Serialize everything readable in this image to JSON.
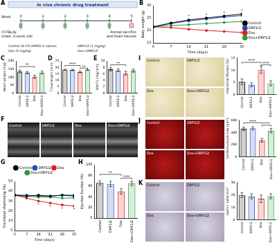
{
  "diagram": {
    "panel": "A",
    "title": "In vivo chronic drug treatment",
    "axis_label": "Week",
    "weeks": [
      0,
      1,
      2,
      3,
      4,
      5
    ],
    "subject": [
      "C57BL/6J",
      "(male, 6-week old)"
    ],
    "endpoint": [
      "Animal sacrifice",
      "and heart harvest"
    ],
    "treatments": [
      "Control (0.1% DMSO in saline)",
      "DRP1i2 (1 mg/kg)",
      "Dox (5 mg/kg)",
      "Dox+DRP1i2"
    ]
  },
  "images": [
    {
      "panel": "F",
      "labels": [
        "Control",
        "DRP1i2",
        "Dox",
        "Dox+DRP1i2"
      ]
    },
    {
      "panel": "I",
      "labels": [
        "Control",
        "DRP1i2",
        "Dox",
        "Dox+DRP1i2"
      ]
    },
    {
      "panel": "J",
      "labels": [
        "Control",
        "DRP1i2",
        "Dox",
        "Dox+DRP1i2"
      ]
    },
    {
      "panel": "K",
      "labels": [
        "Control",
        "DRP1i2",
        "Dox",
        "Dox+DRP1i2"
      ]
    }
  ],
  "chart_data": [
    {
      "panel": "B",
      "type": "line",
      "x_label": "Time (days)",
      "y_label": "Body weight (g)",
      "marker": "circle",
      "legend": "right",
      "grid": false,
      "x": [
        0,
        7,
        14,
        21,
        28,
        35
      ],
      "xlim": [
        0,
        35
      ],
      "xticks": [
        0,
        7,
        14,
        21,
        28,
        35
      ],
      "ylim": [
        15,
        30
      ],
      "yticks": [
        15,
        20,
        25,
        30
      ],
      "series": [
        {
          "name": "Control",
          "color": "#000000",
          "values": [
            21.5,
            23.0,
            24.2,
            25.0,
            25.8,
            26.6
          ]
        },
        {
          "name": "DRP1i2",
          "color": "#1f4eb4",
          "values": [
            21.3,
            22.8,
            23.8,
            24.6,
            25.4,
            26.0
          ]
        },
        {
          "name": "Dox",
          "color": "#e02020",
          "values": [
            21.4,
            21.2,
            20.5,
            20.0,
            19.6,
            19.2
          ]
        },
        {
          "name": "Dox+DRP1i2",
          "color": "#2a9a3a",
          "values": [
            21.4,
            22.0,
            22.3,
            22.8,
            23.2,
            23.6
          ]
        }
      ],
      "annotations": [
        {
          "text": "*",
          "x": 14,
          "y": 25.5
        },
        {
          "text": "*",
          "x": 21,
          "y": 26.3
        },
        {
          "text": "*",
          "x": 28,
          "y": 27.1
        },
        {
          "text": "*",
          "x": 35,
          "y": 27.9
        }
      ]
    },
    {
      "panel": "C",
      "type": "bar",
      "y_label": "Heart weight (mg)",
      "grid": false,
      "categories": [
        "Control",
        "DRP1i2",
        "Dox",
        "Dox+DRP1i2"
      ],
      "colors": [
        "#000000",
        "#1f4eb4",
        "#e02020",
        "#2a9a3a"
      ],
      "values": [
        135,
        128,
        102,
        128
      ],
      "errors": [
        8,
        7,
        10,
        9
      ],
      "ylim": [
        0,
        200
      ],
      "yticks": [
        0,
        50,
        100,
        150,
        200
      ],
      "annotations": [
        {
          "text": "**",
          "from": 0,
          "to": 2,
          "y": 165
        }
      ]
    },
    {
      "panel": "D",
      "type": "bar",
      "y_label": "Tibial length (mm)",
      "grid": false,
      "categories": [
        "Control",
        "DRP1i2",
        "Dox",
        "Dox+DRP1i2"
      ],
      "colors": [
        "#000000",
        "#1f4eb4",
        "#e02020",
        "#2a9a3a"
      ],
      "values": [
        18.2,
        18.0,
        16.4,
        18.1
      ],
      "errors": [
        0.4,
        0.5,
        0.6,
        0.4
      ],
      "ylim": [
        0,
        25
      ],
      "yticks": [
        0,
        5,
        10,
        15,
        20,
        25
      ],
      "annotations": [
        {
          "text": "****",
          "from": 0,
          "to": 2,
          "y": 21.5
        },
        {
          "text": "**",
          "from": 2,
          "to": 3,
          "y": 19.5
        }
      ]
    },
    {
      "panel": "E",
      "type": "bar",
      "y_label": "HW/TL (mg/mm)",
      "grid": false,
      "categories": [
        "Control",
        "DRP1i2",
        "Dox",
        "Dox+DRP1i2"
      ],
      "colors": [
        "#000000",
        "#1f4eb4",
        "#e02020",
        "#2a9a3a"
      ],
      "values": [
        7.4,
        7.1,
        6.2,
        7.0
      ],
      "errors": [
        0.5,
        0.4,
        0.6,
        0.5
      ],
      "ylim": [
        0,
        10
      ],
      "yticks": [
        0,
        2,
        4,
        6,
        8,
        10
      ],
      "annotations": [
        {
          "text": "**",
          "from": 0,
          "to": 2,
          "y": 8.8
        }
      ]
    },
    {
      "panel": "G",
      "type": "line",
      "x_label": "Time (days)",
      "y_label": "Fractional shortening (%)",
      "marker": "circle",
      "legend": "top",
      "grid": false,
      "x": [
        0,
        7,
        14,
        21,
        28,
        35
      ],
      "xlim": [
        0,
        35
      ],
      "xticks": [
        0,
        7,
        14,
        21,
        28,
        35
      ],
      "ylim": [
        0,
        50
      ],
      "yticks": [
        0,
        10,
        20,
        30,
        40,
        50
      ],
      "series": [
        {
          "name": "Control",
          "color": "#000000",
          "values": [
            36,
            35,
            36,
            35,
            36,
            35
          ]
        },
        {
          "name": "DRP1i2",
          "color": "#1f4eb4",
          "values": [
            36,
            36,
            35,
            35,
            36,
            36
          ]
        },
        {
          "name": "Dox",
          "color": "#e02020",
          "values": [
            36,
            33,
            30,
            28,
            26,
            25
          ]
        },
        {
          "name": "Dox+DRP1i2",
          "color": "#2a9a3a",
          "values": [
            36,
            35,
            34,
            34,
            33,
            33
          ]
        }
      ],
      "annotations": [
        {
          "text": "*",
          "x": 14,
          "y": 26
        },
        {
          "text": "*",
          "x": 21,
          "y": 24
        },
        {
          "text": "*",
          "x": 28,
          "y": 22
        },
        {
          "text": "*",
          "x": 35,
          "y": 21
        }
      ]
    },
    {
      "panel": "H",
      "type": "bar",
      "y_label": "Ejection fraction (%)",
      "grid": false,
      "categories": [
        "Control",
        "DRP1i2",
        "Dox",
        "Dox+DRP1i2"
      ],
      "colors": [
        "#000000",
        "#1f4eb4",
        "#e02020",
        "#2a9a3a"
      ],
      "values": [
        66,
        64,
        50,
        65
      ],
      "errors": [
        4,
        5,
        5,
        4
      ],
      "ylim": [
        0,
        100
      ],
      "yticks": [
        0,
        20,
        40,
        60,
        80,
        100
      ],
      "annotations": [
        {
          "text": "**",
          "from": 0,
          "to": 2,
          "y": 82
        },
        {
          "text": "****",
          "from": 2,
          "to": 3,
          "y": 75
        }
      ]
    },
    {
      "panel": "I",
      "type": "bar",
      "y_label": "Interstitial fibrosis (%)",
      "grid": false,
      "categories": [
        "Control",
        "DRP1i2",
        "Dox",
        "Dox+DRP1i2"
      ],
      "colors": [
        "#000000",
        "#1f4eb4",
        "#e02020",
        "#2a9a3a"
      ],
      "values": [
        5.2,
        4.0,
        10.2,
        4.6
      ],
      "errors": [
        1.2,
        0.8,
        1.5,
        1.0
      ],
      "ylim": [
        0,
        15
      ],
      "yticks": [
        0,
        5,
        10,
        15
      ],
      "annotations": [
        {
          "text": "****",
          "from": 0,
          "to": 2,
          "y": 13.2
        },
        {
          "text": "****",
          "from": 2,
          "to": 3,
          "y": 12.2
        }
      ]
    },
    {
      "panel": "J",
      "type": "bar",
      "y_label": "Cardiomyocyte size (μm²)",
      "grid": false,
      "categories": [
        "Control",
        "DRP1i2",
        "Dox",
        "Dox+DRP1i2"
      ],
      "colors": [
        "#000000",
        "#1f4eb4",
        "#e02020",
        "#2a9a3a"
      ],
      "values": [
        460,
        470,
        270,
        430
      ],
      "errors": [
        30,
        25,
        30,
        35
      ],
      "ylim": [
        0,
        600
      ],
      "yticks": [
        0,
        200,
        400,
        600
      ],
      "annotations": [
        {
          "text": "****",
          "from": 0,
          "to": 2,
          "y": 560
        },
        {
          "text": "****",
          "from": 2,
          "to": 3,
          "y": 520
        }
      ]
    },
    {
      "panel": "K",
      "type": "bar",
      "y_label": "Lectin⁺ cells/mm²",
      "grid": false,
      "categories": [
        "Control",
        "DRP1i2",
        "Dox",
        "Dox+DRP1i2"
      ],
      "colors": [
        "#000000",
        "#1f4eb4",
        "#e02020",
        "#2a9a3a"
      ],
      "values": [
        20,
        19,
        17,
        19
      ],
      "errors": [
        2,
        2,
        3,
        2
      ],
      "ylim": [
        0,
        30
      ],
      "yticks": [
        0,
        10,
        20,
        30
      ],
      "annotations": []
    }
  ]
}
